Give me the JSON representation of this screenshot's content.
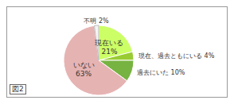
{
  "chart_data": {
    "type": "pie",
    "annotation": "図2",
    "categories": [
      "現在いる",
      "現在、過去ともにいる",
      "過去にいた",
      "いない",
      "不明"
    ],
    "values": [
      21,
      4,
      10,
      63,
      2
    ],
    "value_labels": [
      "21%",
      "4%",
      "10%",
      "63%",
      "2%"
    ],
    "colors": [
      "#ccff66",
      "#99cc33",
      "#77b341",
      "#e6b3b3",
      "#f4f4f4"
    ],
    "data_labels": true
  }
}
